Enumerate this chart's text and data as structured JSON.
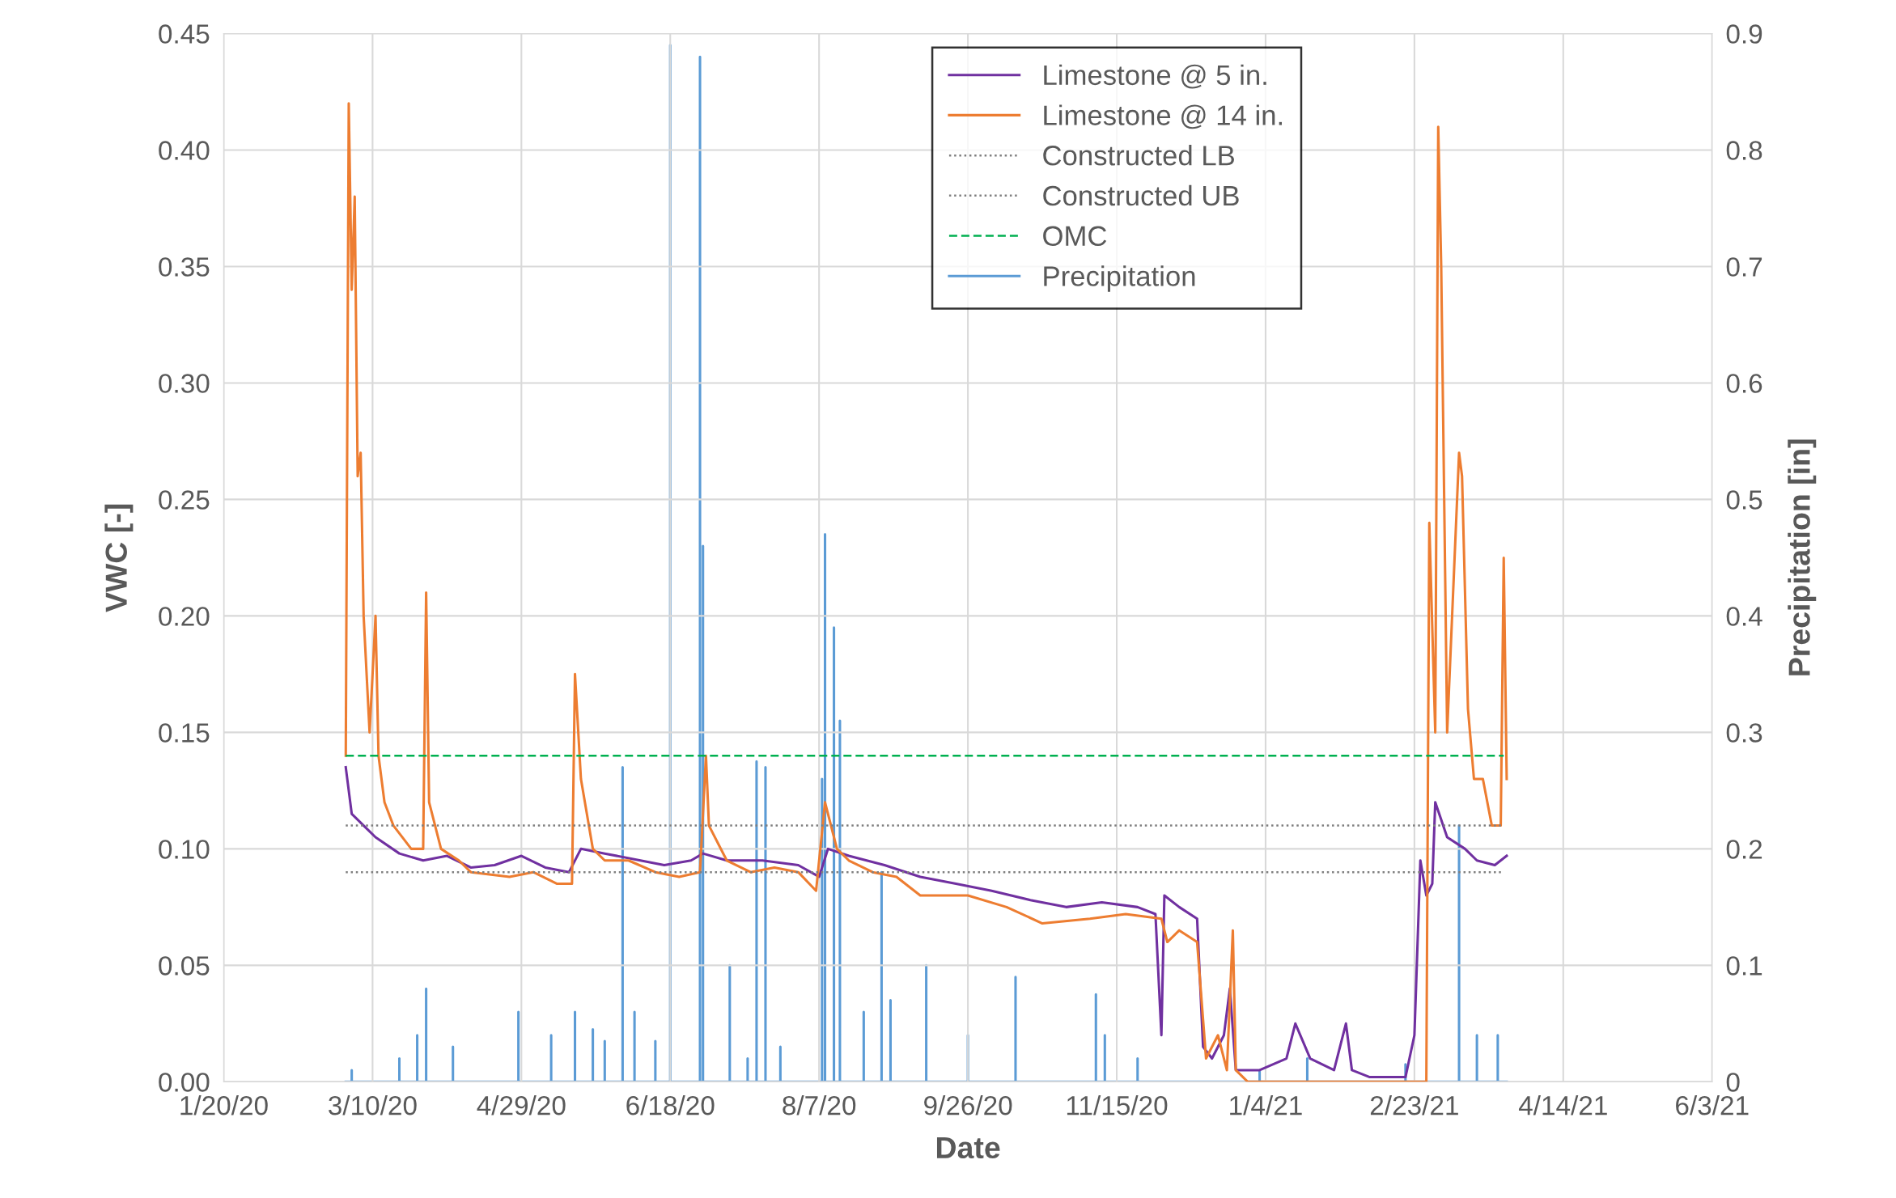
{
  "chart_data": {
    "type": "line",
    "xlabel": "Date",
    "ylabel": "VWC [-]",
    "y2label": "Precipitation [in]",
    "xlim": [
      "2020-01-20",
      "2021-06-03"
    ],
    "xticks": [
      {
        "value": "2020-01-20",
        "label": "1/20/20"
      },
      {
        "value": "2020-03-10",
        "label": "3/10/20"
      },
      {
        "value": "2020-04-29",
        "label": "4/29/20"
      },
      {
        "value": "2020-06-18",
        "label": "6/18/20"
      },
      {
        "value": "2020-08-07",
        "label": "8/7/20"
      },
      {
        "value": "2020-09-26",
        "label": "9/26/20"
      },
      {
        "value": "2020-11-15",
        "label": "11/15/20"
      },
      {
        "value": "2021-01-04",
        "label": "1/4/21"
      },
      {
        "value": "2021-02-23",
        "label": "2/23/21"
      },
      {
        "value": "2021-04-14",
        "label": "4/14/21"
      },
      {
        "value": "2021-06-03",
        "label": "6/3/21"
      }
    ],
    "ylim": [
      0,
      0.45
    ],
    "yticks": [
      {
        "value": 0,
        "label": "0.00"
      },
      0.05,
      {
        "value": 0.1,
        "label": "0.10"
      },
      0.15,
      {
        "value": 0.2,
        "label": "0.20"
      },
      0.25,
      {
        "value": 0.3,
        "label": "0.30"
      },
      0.35,
      {
        "value": 0.4,
        "label": "0.40"
      },
      0.45
    ],
    "y2lim": [
      0,
      0.9
    ],
    "y2ticks": [
      0,
      0.1,
      0.2,
      0.3,
      0.4,
      0.5,
      0.6,
      0.7,
      0.8,
      0.9
    ],
    "grid": true,
    "legend": "top",
    "line_style": "solid",
    "marker": "none",
    "series": [
      {
        "name": "Limestone @ 5 in.",
        "color": "#7030a0",
        "x": [
          "2020-03-01",
          "2020-03-03",
          "2020-03-07",
          "2020-03-11",
          "2020-03-19",
          "2020-03-27",
          "2020-04-04",
          "2020-04-12",
          "2020-04-20",
          "2020-04-29",
          "2020-05-07",
          "2020-05-15",
          "2020-05-19",
          "2020-05-27",
          "2020-06-08",
          "2020-06-16",
          "2020-06-25",
          "2020-06-29",
          "2020-07-07",
          "2020-07-19",
          "2020-07-31",
          "2020-08-07",
          "2020-08-10",
          "2020-08-17",
          "2020-08-29",
          "2020-09-10",
          "2020-09-22",
          "2020-10-04",
          "2020-10-17",
          "2020-10-29",
          "2020-11-10",
          "2020-11-22",
          "2020-11-28",
          "2020-11-30",
          "2020-12-01",
          "2020-12-06",
          "2020-12-12",
          "2020-12-14",
          "2020-12-17",
          "2020-12-21",
          "2020-12-23",
          "2020-12-25",
          "2021-01-02",
          "2021-01-11",
          "2021-01-14",
          "2021-01-19",
          "2021-01-27",
          "2021-01-31",
          "2021-02-02",
          "2021-02-08",
          "2021-02-20",
          "2021-02-23",
          "2021-02-25",
          "2021-02-27",
          "2021-03-01",
          "2021-03-02",
          "2021-03-06",
          "2021-03-12",
          "2021-03-16",
          "2021-03-22",
          "2021-03-26"
        ],
        "values": [
          0.135,
          0.115,
          0.11,
          0.105,
          0.098,
          0.095,
          0.097,
          0.092,
          0.093,
          0.097,
          0.092,
          0.09,
          0.1,
          0.098,
          0.095,
          0.093,
          0.095,
          0.098,
          0.095,
          0.095,
          0.093,
          0.088,
          0.1,
          0.097,
          0.093,
          0.088,
          0.085,
          0.082,
          0.078,
          0.075,
          0.077,
          0.075,
          0.072,
          0.02,
          0.08,
          0.075,
          0.07,
          0.015,
          0.01,
          0.02,
          0.04,
          0.005,
          0.005,
          0.01,
          0.025,
          0.01,
          0.005,
          0.025,
          0.005,
          0.002,
          0.002,
          0.02,
          0.095,
          0.08,
          0.085,
          0.12,
          0.105,
          0.1,
          0.095,
          0.093,
          0.097
        ]
      },
      {
        "name": "Limestone @ 14 in.",
        "color": "#ed7d31",
        "x": [
          "2020-03-01",
          "2020-03-02",
          "2020-03-03",
          "2020-03-04",
          "2020-03-05",
          "2020-03-06",
          "2020-03-07",
          "2020-03-09",
          "2020-03-11",
          "2020-03-12",
          "2020-03-14",
          "2020-03-17",
          "2020-03-23",
          "2020-03-27",
          "2020-03-28",
          "2020-03-29",
          "2020-04-02",
          "2020-04-08",
          "2020-04-12",
          "2020-04-25",
          "2020-05-03",
          "2020-05-11",
          "2020-05-16",
          "2020-05-17",
          "2020-05-19",
          "2020-05-23",
          "2020-05-27",
          "2020-06-04",
          "2020-06-13",
          "2020-06-21",
          "2020-06-28",
          "2020-06-30",
          "2020-07-01",
          "2020-07-07",
          "2020-07-15",
          "2020-07-23",
          "2020-07-31",
          "2020-08-06",
          "2020-08-09",
          "2020-08-13",
          "2020-08-17",
          "2020-08-25",
          "2020-09-02",
          "2020-09-10",
          "2020-09-26",
          "2020-10-09",
          "2020-10-21",
          "2020-11-06",
          "2020-11-18",
          "2020-11-30",
          "2020-12-02",
          "2020-12-06",
          "2020-12-12",
          "2020-12-15",
          "2020-12-19",
          "2020-12-22",
          "2020-12-24",
          "2020-12-25",
          "2020-12-29",
          "2021-02-01",
          "2021-02-27",
          "2021-02-28",
          "2021-03-02",
          "2021-03-03",
          "2021-03-04",
          "2021-03-06",
          "2021-03-10",
          "2021-03-11",
          "2021-03-13",
          "2021-03-15",
          "2021-03-18",
          "2021-03-21",
          "2021-03-24",
          "2021-03-25",
          "2021-03-26"
        ],
        "values": [
          0.14,
          0.42,
          0.34,
          0.38,
          0.26,
          0.27,
          0.2,
          0.15,
          0.2,
          0.14,
          0.12,
          0.11,
          0.1,
          0.1,
          0.21,
          0.12,
          0.1,
          0.095,
          0.09,
          0.088,
          0.09,
          0.085,
          0.085,
          0.175,
          0.13,
          0.1,
          0.095,
          0.095,
          0.09,
          0.088,
          0.09,
          0.14,
          0.11,
          0.095,
          0.09,
          0.092,
          0.09,
          0.082,
          0.12,
          0.1,
          0.095,
          0.09,
          0.088,
          0.08,
          0.08,
          0.075,
          0.068,
          0.07,
          0.072,
          0.07,
          0.06,
          0.065,
          0.06,
          0.01,
          0.02,
          0.005,
          0.065,
          0.005,
          0,
          0,
          0,
          0.24,
          0.15,
          0.41,
          0.35,
          0.15,
          0.27,
          0.26,
          0.16,
          0.13,
          0.13,
          0.11,
          0.11,
          0.225,
          0.13
        ]
      },
      {
        "name": "Constructed LB",
        "color": "#7f7f7f",
        "line_style": "dotted",
        "x": [
          "2020-03-01",
          "2021-03-25"
        ],
        "values": [
          0.09,
          0.09
        ]
      },
      {
        "name": "Constructed UB",
        "color": "#7f7f7f",
        "line_style": "dotted",
        "x": [
          "2020-03-01",
          "2021-03-25"
        ],
        "values": [
          0.11,
          0.11
        ]
      },
      {
        "name": "OMC",
        "color": "#00b050",
        "line_style": "dashed",
        "x": [
          "2020-03-01",
          "2021-03-25"
        ],
        "values": [
          0.14,
          0.14
        ]
      },
      {
        "name": "Precipitation",
        "color": "#5b9bd5",
        "axis": "y2",
        "x": [
          "2020-03-01",
          "2020-03-03",
          "2020-03-03",
          "2020-03-03",
          "2020-03-19",
          "2020-03-19",
          "2020-03-19",
          "2020-03-25",
          "2020-03-25",
          "2020-03-25",
          "2020-03-28",
          "2020-03-28",
          "2020-03-28",
          "2020-04-06",
          "2020-04-06",
          "2020-04-06",
          "2020-04-28",
          "2020-04-28",
          "2020-04-28",
          "2020-05-09",
          "2020-05-09",
          "2020-05-09",
          "2020-05-17",
          "2020-05-17",
          "2020-05-17",
          "2020-05-23",
          "2020-05-23",
          "2020-05-23",
          "2020-05-27",
          "2020-05-27",
          "2020-05-27",
          "2020-06-02",
          "2020-06-02",
          "2020-06-02",
          "2020-06-06",
          "2020-06-06",
          "2020-06-06",
          "2020-06-13",
          "2020-06-13",
          "2020-06-13",
          "2020-06-18",
          "2020-06-18",
          "2020-06-18",
          "2020-06-28",
          "2020-06-28",
          "2020-06-28",
          "2020-06-29",
          "2020-06-29",
          "2020-06-29",
          "2020-07-08",
          "2020-07-08",
          "2020-07-08",
          "2020-07-14",
          "2020-07-14",
          "2020-07-14",
          "2020-07-17",
          "2020-07-17",
          "2020-07-17",
          "2020-07-20",
          "2020-07-20",
          "2020-07-20",
          "2020-07-25",
          "2020-07-25",
          "2020-07-25",
          "2020-08-08",
          "2020-08-08",
          "2020-08-08",
          "2020-08-09",
          "2020-08-09",
          "2020-08-09",
          "2020-08-12",
          "2020-08-12",
          "2020-08-12",
          "2020-08-14",
          "2020-08-14",
          "2020-08-14",
          "2020-08-22",
          "2020-08-22",
          "2020-08-22",
          "2020-08-28",
          "2020-08-28",
          "2020-08-28",
          "2020-08-31",
          "2020-08-31",
          "2020-08-31",
          "2020-09-12",
          "2020-09-12",
          "2020-09-12",
          "2020-09-26",
          "2020-09-26",
          "2020-09-26",
          "2020-10-12",
          "2020-10-12",
          "2020-10-12",
          "2020-11-08",
          "2020-11-08",
          "2020-11-08",
          "2020-11-11",
          "2020-11-11",
          "2020-11-11",
          "2020-11-22",
          "2020-11-22",
          "2020-11-22",
          "2021-01-02",
          "2021-01-02",
          "2021-01-02",
          "2021-01-18",
          "2021-01-18",
          "2021-01-18",
          "2021-02-20",
          "2021-02-20",
          "2021-02-20",
          "2021-03-10",
          "2021-03-10",
          "2021-03-10",
          "2021-03-16",
          "2021-03-16",
          "2021-03-16",
          "2021-03-23",
          "2021-03-23",
          "2021-03-23",
          "2021-03-26"
        ],
        "values": [
          0,
          0,
          0.01,
          0,
          0,
          0.02,
          0,
          0,
          0.04,
          0,
          0,
          0.08,
          0,
          0,
          0.03,
          0,
          0,
          0.06,
          0,
          0,
          0.04,
          0,
          0,
          0.06,
          0,
          0,
          0.045,
          0,
          0,
          0.035,
          0,
          0,
          0.27,
          0,
          0,
          0.06,
          0,
          0,
          0.035,
          0,
          0,
          0.89,
          0,
          0,
          0.88,
          0,
          0,
          0.46,
          0,
          0,
          0.1,
          0,
          0,
          0.02,
          0,
          0,
          0.275,
          0,
          0,
          0.27,
          0,
          0,
          0.03,
          0,
          0,
          0.26,
          0,
          0,
          0.47,
          0,
          0,
          0.39,
          0,
          0,
          0.31,
          0,
          0,
          0.06,
          0,
          0,
          0.18,
          0,
          0,
          0.07,
          0,
          0,
          0.1,
          0,
          0,
          0.04,
          0,
          0,
          0.09,
          0,
          0,
          0.075,
          0,
          0,
          0.04,
          0,
          0,
          0.02,
          0,
          0,
          0.01,
          0,
          0,
          0.02,
          0,
          0,
          0.015,
          0,
          0,
          0.22,
          0,
          0,
          0.04,
          0,
          0,
          0.04,
          0,
          0
        ]
      }
    ]
  }
}
